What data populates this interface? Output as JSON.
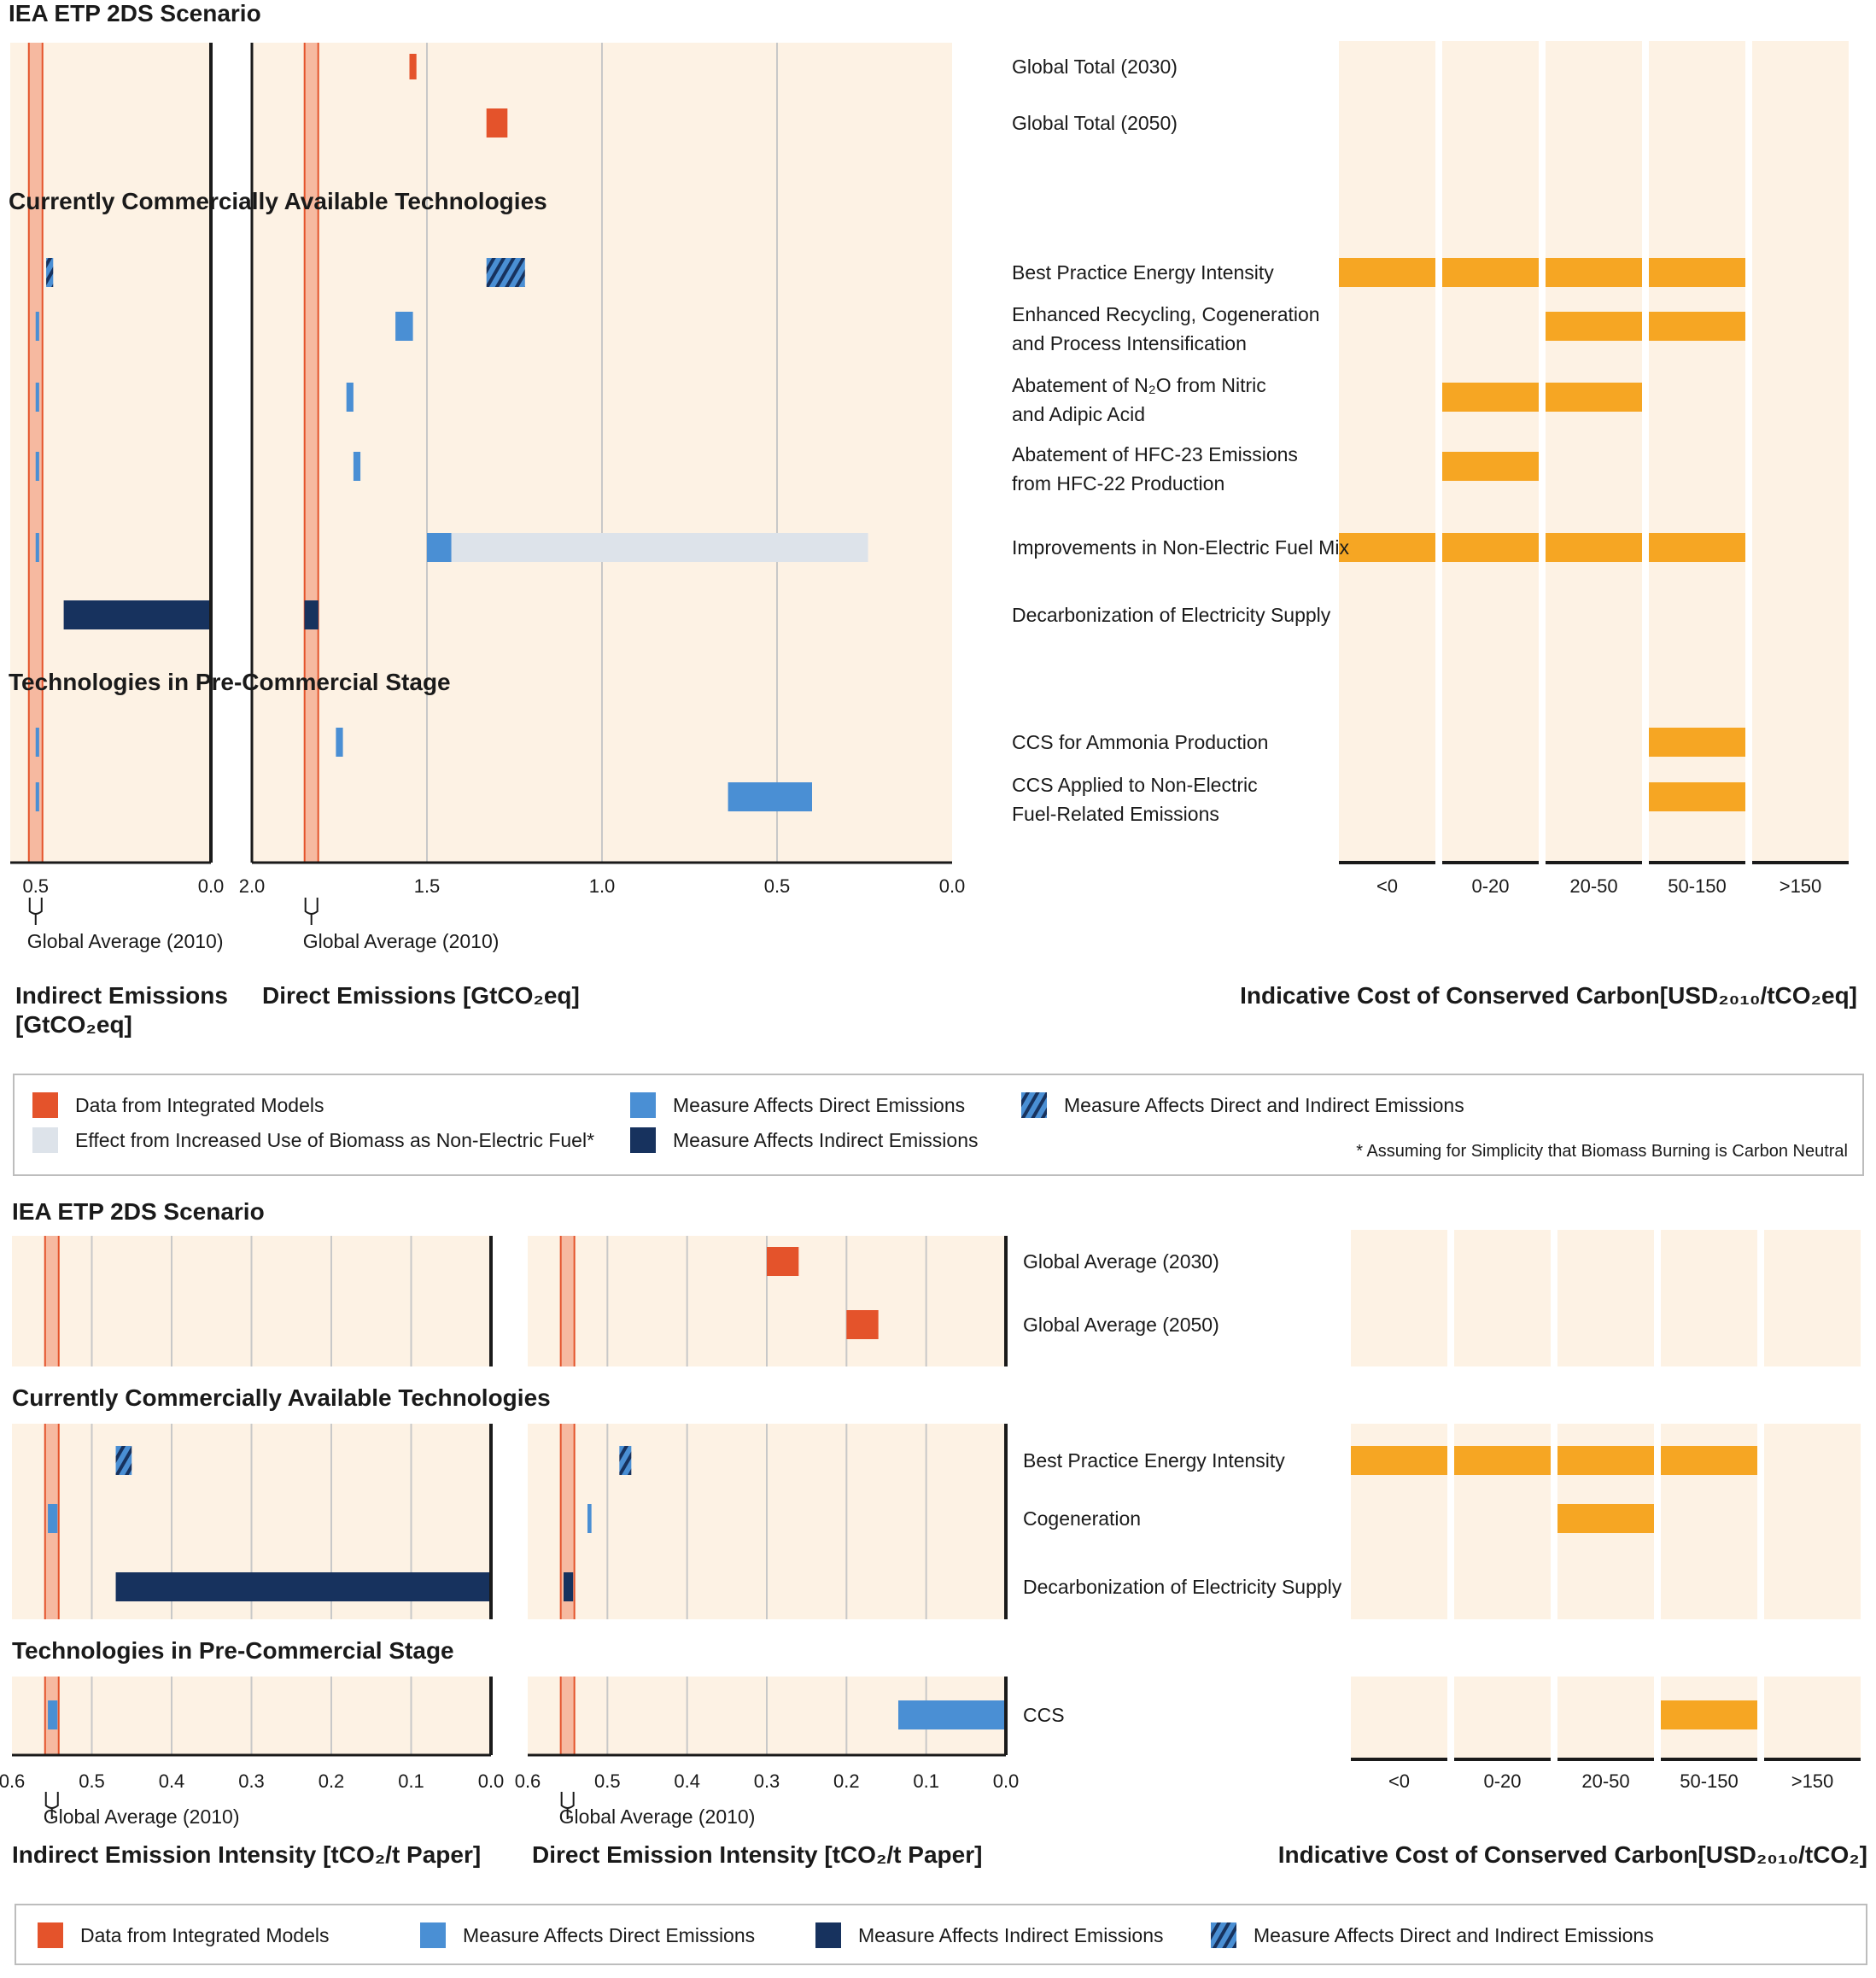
{
  "colors": {
    "model": "#e4532b",
    "direct": "#4a8fd4",
    "indirect": "#17325e",
    "biomass": "#dde3ea",
    "cost": "#f6a623",
    "panel": "#fdf2e4",
    "avg_band": "#f6b9a0"
  },
  "chart_data": [
    {
      "type": "bar",
      "panel": "chemicals",
      "title": "IEA ETP 2DS Scenario",
      "section_titles": [
        "Currently Commercially Available Technologies",
        "Technologies in Pre-Commercial Stage"
      ],
      "categories": [
        "Global Total (2030)",
        "Global Total (2050)",
        "Best Practice Energy Intensity",
        "Enhanced Recycling, Cogeneration|and Process Intensification",
        "Abatement of N₂O from Nitric|and Adipic Acid",
        "Abatement of HFC-23 Emissions|from HFC-22 Production",
        "Improvements in Non-Electric Fuel Mix",
        "Decarbonization of Electricity Supply",
        "CCS for Ammonia Production",
        "CCS Applied to Non-Electric|Fuel-Related Emissions"
      ],
      "global_average_2010_label": "Global Average (2010)",
      "indirect": {
        "xlabel": "Indirect Emissions",
        "xlabel2": "[GtCO₂eq]",
        "xlim": [
          0.5725,
          0.0
        ],
        "ticks": [
          0.5,
          0.0
        ],
        "tick_labels": [
          "0.5",
          "0.0"
        ],
        "global_average_2010": 0.5,
        "bars": [
          {
            "category": 2,
            "kind": "both",
            "from": 0.47,
            "to": 0.45
          },
          {
            "category": 3,
            "kind": "direct",
            "from": 0.5,
            "to": 0.49
          },
          {
            "category": 4,
            "kind": "direct",
            "from": 0.5,
            "to": 0.49
          },
          {
            "category": 5,
            "kind": "direct",
            "from": 0.5,
            "to": 0.49
          },
          {
            "category": 6,
            "kind": "direct",
            "from": 0.5,
            "to": 0.49
          },
          {
            "category": 7,
            "kind": "indirect",
            "from": 0.42,
            "to": 0.0
          },
          {
            "category": 8,
            "kind": "direct",
            "from": 0.5,
            "to": 0.49
          },
          {
            "category": 9,
            "kind": "direct",
            "from": 0.5,
            "to": 0.49
          }
        ]
      },
      "direct": {
        "xlabel": "Direct Emissions [GtCO₂eq]",
        "xlim": [
          2.0,
          0.0
        ],
        "ticks": [
          2.0,
          1.5,
          1.0,
          0.5,
          0.0
        ],
        "tick_labels": [
          "2.0",
          "1.5",
          "1.0",
          "0.5",
          "0.0"
        ],
        "global_average_2010": 1.83,
        "bars": [
          {
            "category": 0,
            "kind": "model",
            "from": 1.55,
            "to": 1.53
          },
          {
            "category": 1,
            "kind": "model",
            "from": 1.33,
            "to": 1.27
          },
          {
            "category": 2,
            "kind": "both",
            "from": 1.33,
            "to": 1.22
          },
          {
            "category": 3,
            "kind": "direct",
            "from": 1.59,
            "to": 1.54
          },
          {
            "category": 4,
            "kind": "direct",
            "from": 1.73,
            "to": 1.71
          },
          {
            "category": 5,
            "kind": "direct",
            "from": 1.71,
            "to": 1.69
          },
          {
            "category": 6,
            "kind": "direct",
            "from": 1.5,
            "to": 1.43
          },
          {
            "category": 6,
            "kind": "biomass",
            "from": 1.43,
            "to": 0.24
          },
          {
            "category": 7,
            "kind": "indirect",
            "from": 1.85,
            "to": 1.81
          },
          {
            "category": 8,
            "kind": "direct",
            "from": 1.76,
            "to": 1.74
          },
          {
            "category": 9,
            "kind": "direct",
            "from": 0.64,
            "to": 0.4
          }
        ]
      },
      "cost": {
        "xlabel": "Indicative Cost of Conserved Carbon[USD₂₀₁₀/tCO₂eq]",
        "bins": [
          "<0",
          "0-20",
          "20-50",
          "50-150",
          ">150"
        ],
        "bars": [
          {
            "category": 2,
            "bins": [
              0,
              1,
              2,
              3
            ]
          },
          {
            "category": 3,
            "bins": [
              2,
              3
            ]
          },
          {
            "category": 4,
            "bins": [
              1,
              2
            ]
          },
          {
            "category": 5,
            "bins": [
              1
            ]
          },
          {
            "category": 6,
            "bins": [
              0,
              1,
              2,
              3
            ]
          },
          {
            "category": 8,
            "bins": [
              3
            ]
          },
          {
            "category": 9,
            "bins": [
              3
            ]
          }
        ]
      }
    },
    {
      "type": "bar",
      "panel": "paper",
      "title": "IEA ETP 2DS Scenario",
      "section_titles": [
        "Currently Commercially Available Technologies",
        "Technologies in Pre-Commercial Stage"
      ],
      "categories": [
        "Global Average (2030)",
        "Global Average (2050)",
        "Best Practice Energy Intensity",
        "Cogeneration",
        "Decarbonization of Electricity Supply",
        "CCS"
      ],
      "global_average_2010_label": "Global Average (2010)",
      "indirect": {
        "xlabel": "Indirect Emission Intensity [tCO₂/t Paper]",
        "xlim": [
          0.6,
          0.0
        ],
        "ticks": [
          0.6,
          0.5,
          0.4,
          0.3,
          0.2,
          0.1,
          0.0
        ],
        "tick_labels": [
          "0.6",
          "0.5",
          "0.4",
          "0.3",
          "0.2",
          "0.1",
          "0.0"
        ],
        "global_average_2010": 0.55,
        "bars": [
          {
            "category": 2,
            "kind": "both",
            "from": 0.47,
            "to": 0.45
          },
          {
            "category": 3,
            "kind": "direct",
            "from": 0.555,
            "to": 0.543
          },
          {
            "category": 4,
            "kind": "indirect",
            "from": 0.47,
            "to": 0.0
          },
          {
            "category": 5,
            "kind": "direct",
            "from": 0.555,
            "to": 0.543
          }
        ]
      },
      "direct": {
        "xlabel": "Direct Emission Intensity [tCO₂/t Paper]",
        "xlim": [
          0.6,
          0.0
        ],
        "ticks": [
          0.6,
          0.5,
          0.4,
          0.3,
          0.2,
          0.1,
          0.0
        ],
        "tick_labels": [
          "0.6",
          "0.5",
          "0.4",
          "0.3",
          "0.2",
          "0.1",
          "0.0"
        ],
        "global_average_2010": 0.55,
        "bars": [
          {
            "category": 0,
            "kind": "model",
            "from": 0.3,
            "to": 0.26
          },
          {
            "category": 1,
            "kind": "model",
            "from": 0.2,
            "to": 0.16
          },
          {
            "category": 2,
            "kind": "both",
            "from": 0.485,
            "to": 0.47
          },
          {
            "category": 3,
            "kind": "direct",
            "from": 0.525,
            "to": 0.52
          },
          {
            "category": 4,
            "kind": "indirect",
            "from": 0.555,
            "to": 0.543
          },
          {
            "category": 5,
            "kind": "direct",
            "from": 0.135,
            "to": 0.0
          }
        ]
      },
      "cost": {
        "xlabel": "Indicative Cost of Conserved Carbon[USD₂₀₁₀/tCO₂]",
        "bins": [
          "<0",
          "0-20",
          "20-50",
          "50-150",
          ">150"
        ],
        "bars": [
          {
            "category": 2,
            "bins": [
              0,
              1,
              2,
              3
            ]
          },
          {
            "category": 3,
            "bins": [
              2
            ]
          },
          {
            "category": 5,
            "bins": [
              3
            ]
          }
        ]
      }
    }
  ],
  "legend_top": {
    "items": [
      {
        "kind": "model",
        "label": "Data from Integrated Models"
      },
      {
        "kind": "biomass",
        "label": "Effect from Increased Use of Biomass as Non-Electric Fuel*"
      },
      {
        "kind": "direct",
        "label": "Measure Affects Direct Emissions"
      },
      {
        "kind": "indirect",
        "label": "Measure Affects Indirect Emissions"
      },
      {
        "kind": "both",
        "label": "Measure Affects Direct and Indirect Emissions"
      }
    ],
    "footnote": "* Assuming for Simplicity that Biomass Burning is Carbon Neutral"
  },
  "legend_bottom": {
    "items": [
      {
        "kind": "model",
        "label": "Data from Integrated Models"
      },
      {
        "kind": "direct",
        "label": "Measure Affects Direct Emissions"
      },
      {
        "kind": "indirect",
        "label": "Measure Affects Indirect Emissions"
      },
      {
        "kind": "both",
        "label": "Measure Affects Direct and Indirect Emissions"
      }
    ]
  }
}
